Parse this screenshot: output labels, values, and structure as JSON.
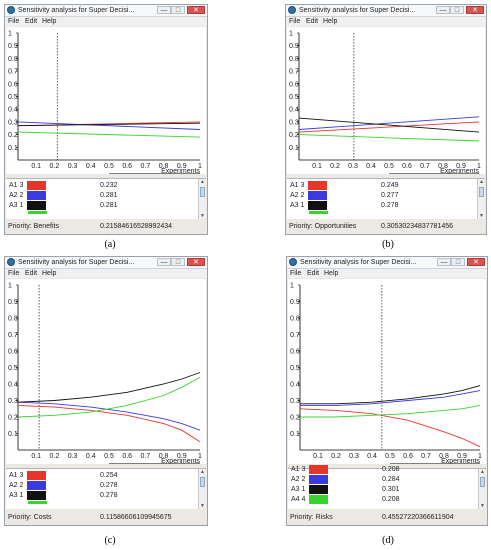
{
  "colors": {
    "red": "#e8352a",
    "blue": "#3a3adf",
    "black": "#111111",
    "green": "#37d42e"
  },
  "panels": [
    {
      "title": "Sensitivity analysis for Super Decisi...",
      "menu": [
        "File",
        "Edit",
        "Help"
      ],
      "window_buttons": {
        "min": "—",
        "max": "□",
        "close": "✕"
      },
      "y_ticks": [
        "1",
        "0.9",
        "0.8",
        "0.7",
        "0.6",
        "0.5",
        "0.4",
        "0.3",
        "0.2",
        "0.1"
      ],
      "x_ticks": [
        "0.1",
        "0.2",
        "0.3",
        "0.4",
        "0.5",
        "0.6",
        "0.7",
        "0.8",
        "0.9",
        "1"
      ],
      "x_label": "Experiments",
      "rows": [
        {
          "label": "A1 3",
          "color": "red",
          "value": "0.232"
        },
        {
          "label": "A2 2",
          "color": "blue",
          "value": "0.281"
        },
        {
          "label": "A3 1",
          "color": "black",
          "value": "0.281"
        }
      ],
      "priority_label": "Priority: Benefits",
      "priority_value": "0.21584616528992434",
      "caption": "(a)",
      "chart_data": {
        "type": "line",
        "xlim": [
          0,
          1
        ],
        "ylim": [
          0,
          1
        ],
        "marker_x": 0.216,
        "series": [
          {
            "color": "red",
            "x": [
              0,
              1
            ],
            "y": [
              0.27,
              0.3
            ]
          },
          {
            "color": "blue",
            "x": [
              0,
              1
            ],
            "y": [
              0.3,
              0.24
            ]
          },
          {
            "color": "black",
            "x": [
              0,
              1
            ],
            "y": [
              0.27,
              0.29
            ]
          },
          {
            "color": "green",
            "x": [
              0,
              1
            ],
            "y": [
              0.22,
              0.18
            ]
          }
        ]
      }
    },
    {
      "title": "Sensitivity analysis for Super Decisi...",
      "menu": [
        "File",
        "Edit",
        "Help"
      ],
      "window_buttons": {
        "min": "—",
        "max": "□",
        "close": "✕"
      },
      "y_ticks": [
        "1",
        "0.9",
        "0.8",
        "0.7",
        "0.6",
        "0.5",
        "0.4",
        "0.3",
        "0.2",
        "0.1"
      ],
      "x_ticks": [
        "0.1",
        "0.2",
        "0.3",
        "0.4",
        "0.5",
        "0.6",
        "0.7",
        "0.8",
        "0.9",
        "1"
      ],
      "x_label": "Experiments",
      "rows": [
        {
          "label": "A1 3",
          "color": "red",
          "value": "0.249"
        },
        {
          "label": "A2 2",
          "color": "blue",
          "value": "0.277"
        },
        {
          "label": "A3 1",
          "color": "black",
          "value": "0.278"
        }
      ],
      "priority_label": "Priority: Opportunities",
      "priority_value": "0.30530234837781456",
      "caption": "(b)",
      "chart_data": {
        "type": "line",
        "xlim": [
          0,
          1
        ],
        "ylim": [
          0,
          1
        ],
        "marker_x": 0.305,
        "series": [
          {
            "color": "red",
            "x": [
              0,
              1
            ],
            "y": [
              0.22,
              0.3
            ]
          },
          {
            "color": "blue",
            "x": [
              0,
              1
            ],
            "y": [
              0.24,
              0.34
            ]
          },
          {
            "color": "black",
            "x": [
              0,
              1
            ],
            "y": [
              0.33,
              0.22
            ]
          },
          {
            "color": "green",
            "x": [
              0,
              1
            ],
            "y": [
              0.2,
              0.15
            ]
          }
        ]
      }
    },
    {
      "title": "Sensitivity analysis for Super Decisi...",
      "menu": [
        "File",
        "Edit",
        "Help"
      ],
      "window_buttons": {
        "min": "—",
        "max": "□",
        "close": "✕"
      },
      "y_ticks": [
        "1",
        "0.9",
        "0.8",
        "0.7",
        "0.6",
        "0.5",
        "0.4",
        "0.3",
        "0.2",
        "0.1"
      ],
      "x_ticks": [
        "0.1",
        "0.2",
        "0.3",
        "0.4",
        "0.5",
        "0.6",
        "0.7",
        "0.8",
        "0.9",
        "1"
      ],
      "x_label": "Experiments",
      "rows": [
        {
          "label": "A1 3",
          "color": "red",
          "value": "0.254"
        },
        {
          "label": "A2 2",
          "color": "blue",
          "value": "0.278"
        },
        {
          "label": "A3 1",
          "color": "black",
          "value": "0.278"
        }
      ],
      "priority_label": "Priority: Costs",
      "priority_value": "0.11586606109945675",
      "caption": "(c)",
      "chart_data": {
        "type": "line",
        "xlim": [
          0,
          1
        ],
        "ylim": [
          0,
          1
        ],
        "marker_x": 0.116,
        "series": [
          {
            "color": "red",
            "x": [
              0,
              0.2,
              0.4,
              0.6,
              0.8,
              0.9,
              1
            ],
            "y": [
              0.27,
              0.26,
              0.24,
              0.21,
              0.16,
              0.12,
              0.05
            ]
          },
          {
            "color": "blue",
            "x": [
              0,
              0.2,
              0.4,
              0.6,
              0.8,
              0.9,
              1
            ],
            "y": [
              0.29,
              0.28,
              0.26,
              0.23,
              0.19,
              0.16,
              0.12
            ]
          },
          {
            "color": "black",
            "x": [
              0,
              0.2,
              0.4,
              0.6,
              0.8,
              0.9,
              1
            ],
            "y": [
              0.29,
              0.3,
              0.32,
              0.35,
              0.4,
              0.43,
              0.47
            ]
          },
          {
            "color": "green",
            "x": [
              0,
              0.2,
              0.4,
              0.6,
              0.8,
              0.9,
              1
            ],
            "y": [
              0.2,
              0.21,
              0.23,
              0.27,
              0.33,
              0.38,
              0.44
            ]
          }
        ]
      }
    },
    {
      "title": "Sensitivity analysis for Super Decisi...",
      "menu": [
        "File",
        "Edit",
        "Help"
      ],
      "window_buttons": {
        "min": "—",
        "max": "□",
        "close": "✕"
      },
      "y_ticks": [
        "1",
        "0.9",
        "0.8",
        "0.7",
        "0.6",
        "0.5",
        "0.4",
        "0.3",
        "0.2",
        "0.1"
      ],
      "x_ticks": [
        "0.1",
        "0.2",
        "0.3",
        "0.4",
        "0.5",
        "0.6",
        "0.7",
        "0.8",
        "0.9",
        "1"
      ],
      "x_label": "Experiments",
      "rows": [
        {
          "label": "A1 3",
          "color": "red",
          "value": "0.208"
        },
        {
          "label": "A2 2",
          "color": "blue",
          "value": "0.284"
        },
        {
          "label": "A3 1",
          "color": "black",
          "value": "0.301"
        },
        {
          "label": "A4 4",
          "color": "green",
          "value": "0.208"
        }
      ],
      "priority_label": "Priority: Risks",
      "priority_value": "0.45527220366611904",
      "caption": "(d)",
      "chart_data": {
        "type": "line",
        "xlim": [
          0,
          1
        ],
        "ylim": [
          0,
          1
        ],
        "marker_x": 0.455,
        "series": [
          {
            "color": "red",
            "x": [
              0,
              0.2,
              0.4,
              0.6,
              0.8,
              0.9,
              1
            ],
            "y": [
              0.25,
              0.24,
              0.22,
              0.18,
              0.11,
              0.07,
              0.02
            ]
          },
          {
            "color": "blue",
            "x": [
              0,
              0.2,
              0.4,
              0.6,
              0.8,
              0.9,
              1
            ],
            "y": [
              0.27,
              0.27,
              0.28,
              0.3,
              0.32,
              0.34,
              0.36
            ]
          },
          {
            "color": "black",
            "x": [
              0,
              0.2,
              0.4,
              0.6,
              0.8,
              0.9,
              1
            ],
            "y": [
              0.28,
              0.28,
              0.29,
              0.31,
              0.34,
              0.36,
              0.39
            ]
          },
          {
            "color": "green",
            "x": [
              0,
              0.2,
              0.4,
              0.6,
              0.8,
              0.9,
              1
            ],
            "y": [
              0.2,
              0.2,
              0.21,
              0.22,
              0.24,
              0.25,
              0.27
            ]
          }
        ]
      }
    }
  ]
}
